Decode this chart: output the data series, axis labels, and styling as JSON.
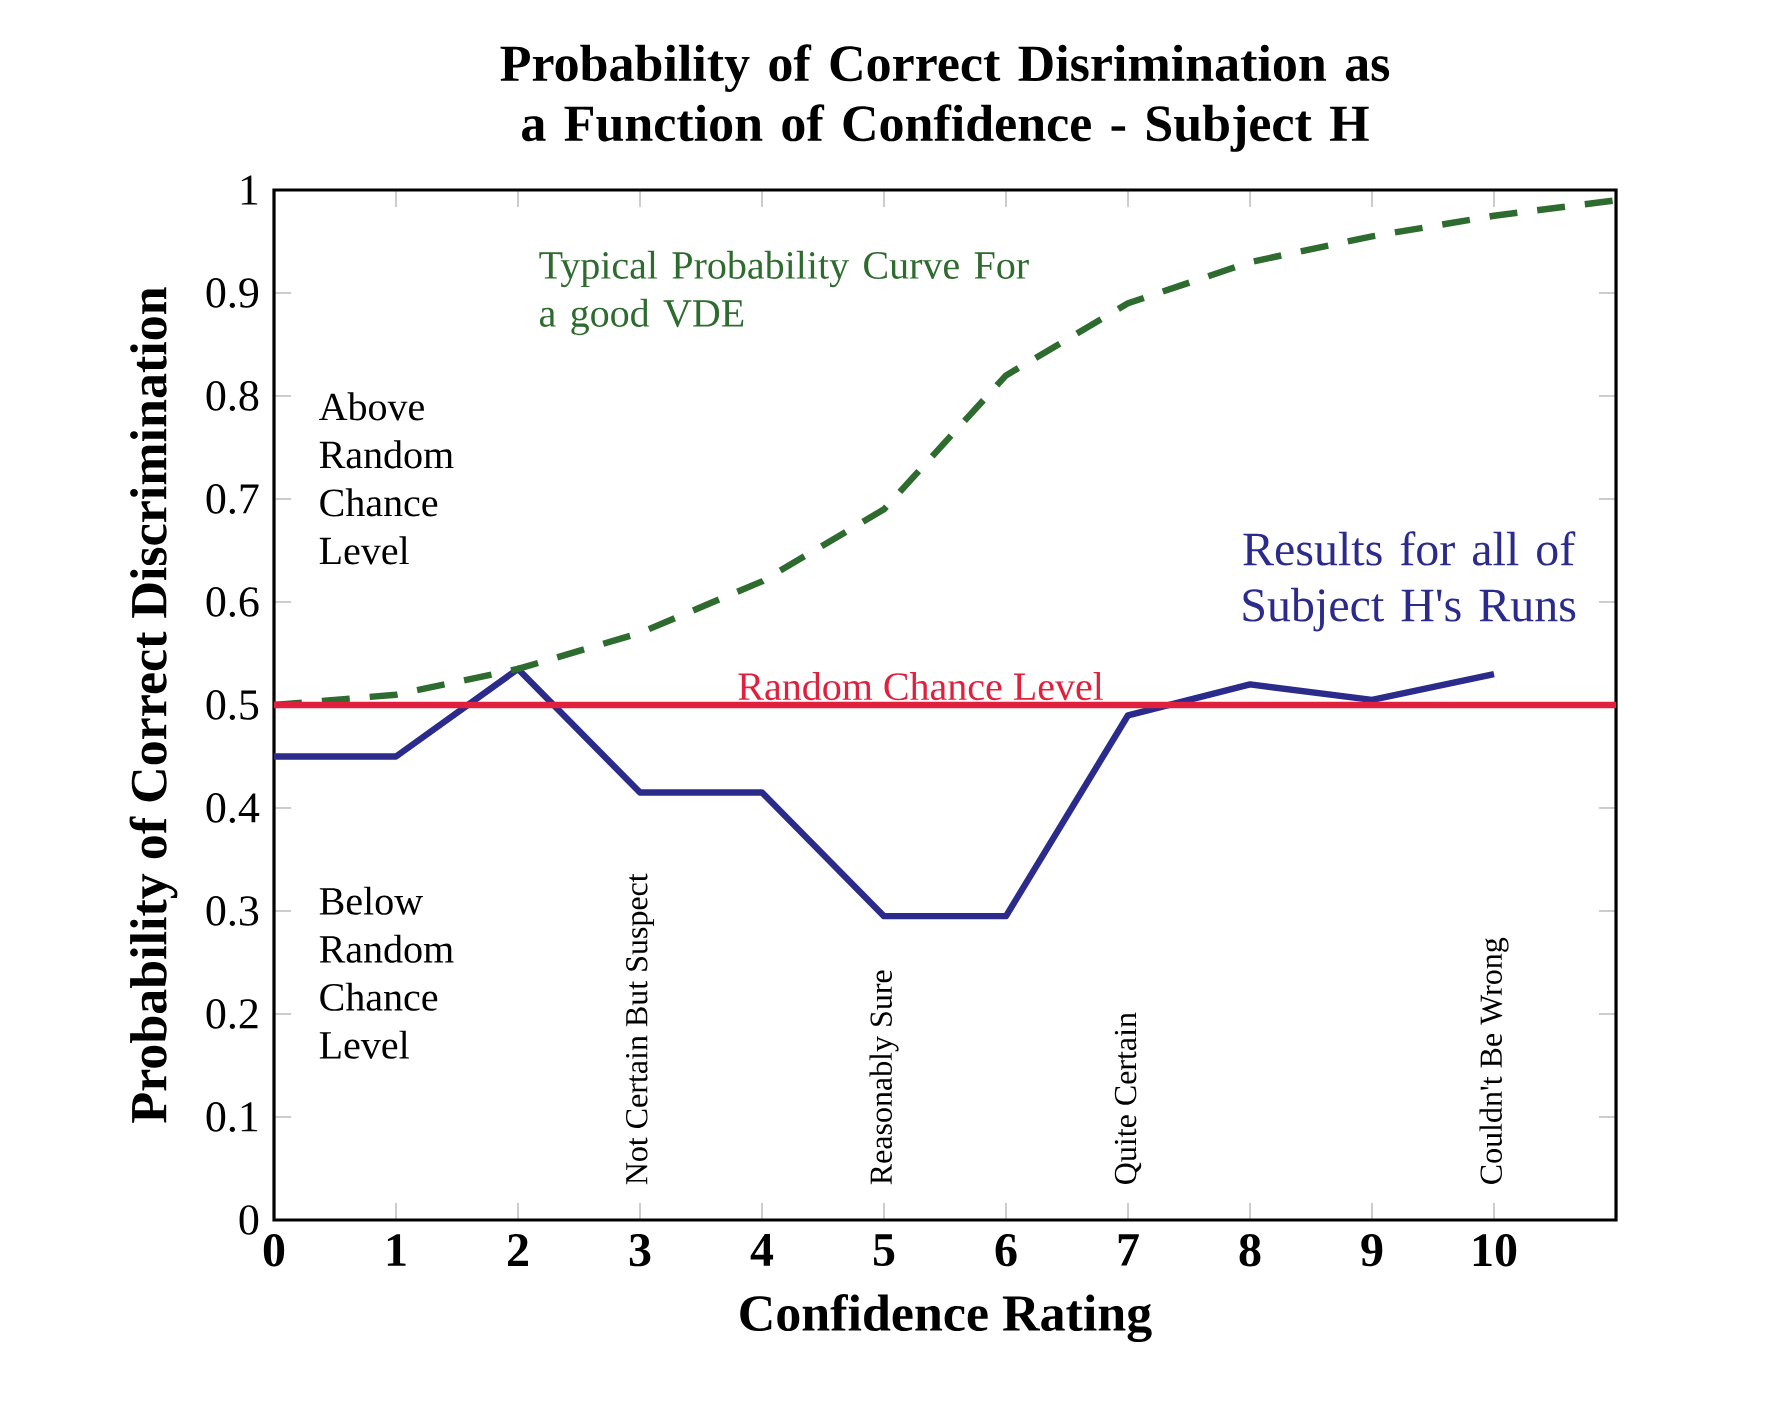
{
  "chart_data": {
    "type": "line",
    "title": "Probability of Correct Disrimination as a Function of Confidence - Subject H",
    "xlabel": "Confidence Rating",
    "ylabel": "Probability of Correct Discrimination",
    "xlim": [
      0,
      11
    ],
    "xticks": [
      0,
      1,
      2,
      3,
      4,
      5,
      6,
      7,
      8,
      9,
      10
    ],
    "ylim": [
      0,
      1
    ],
    "yticks": [
      0,
      0.1,
      0.2,
      0.3,
      0.4,
      0.5,
      0.6,
      0.7,
      0.8,
      0.9,
      1
    ],
    "series": [
      {
        "name": "Results for all of Subject H's Runs",
        "color": "#2b2b8c",
        "line_style": "solid",
        "x": [
          0,
          1,
          2,
          3,
          4,
          5,
          6,
          7,
          8,
          9,
          10
        ],
        "values": [
          0.45,
          0.45,
          0.535,
          0.415,
          0.415,
          0.295,
          0.295,
          0.49,
          0.52,
          0.505,
          0.53
        ]
      },
      {
        "name": "Typical Probability Curve For a good VDE",
        "color": "#2e6b2e",
        "line_style": "dashed",
        "x": [
          0,
          1,
          2,
          3,
          4,
          5,
          6,
          7,
          8,
          9,
          10,
          11
        ],
        "values": [
          0.5,
          0.51,
          0.535,
          0.57,
          0.62,
          0.69,
          0.82,
          0.89,
          0.93,
          0.955,
          0.975,
          0.99
        ]
      }
    ],
    "ref_lines": [
      {
        "axis": "y",
        "value": 0.5,
        "label": "Random Chance Level",
        "color": "#e0203c"
      }
    ],
    "annotations": [
      "Above Random Chance Level",
      "Below Random Chance Level",
      "Not Certain But Suspect",
      "Reasonably Sure",
      "Quite Certain",
      "Couldn't Be Wrong"
    ],
    "grid": false,
    "marker": "none"
  }
}
